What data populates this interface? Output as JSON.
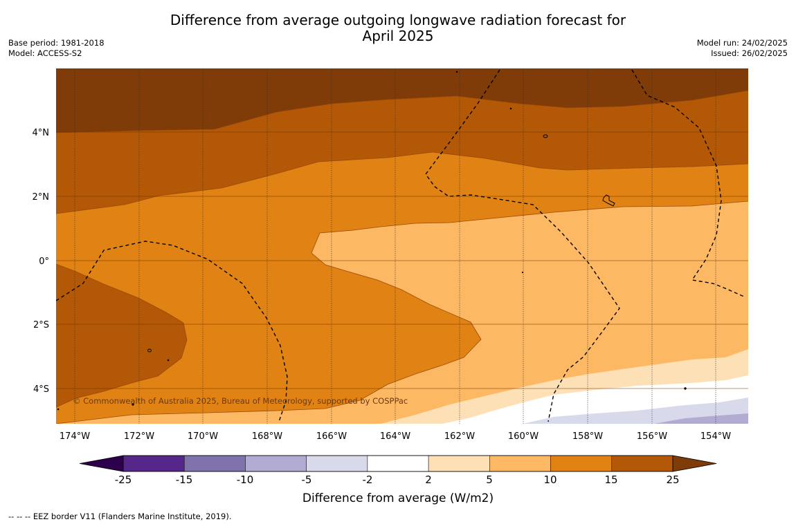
{
  "title_line1": "Difference from average outgoing longwave radiation forecast for",
  "title_line2": "April 2025",
  "base_period": "Base period: 1981-2018",
  "model": "Model: ACCESS-S2",
  "model_run": "Model run: 24/02/2025",
  "issued": "Issued: 26/02/2025",
  "copyright": "© Commonwealth of Australia 2025, Bureau of Meteorology, supported by COSPPac",
  "map": {
    "lon_labels": [
      "174°W",
      "172°W",
      "170°W",
      "168°W",
      "166°W",
      "164°W",
      "162°W",
      "160°W",
      "158°W",
      "156°W",
      "154°W"
    ],
    "lat_labels": [
      "4°N",
      "2°N",
      "0°",
      "2°S",
      "4°S"
    ]
  },
  "colorbar": {
    "title": "Difference from average (W/m2)",
    "ticks": [
      "-25",
      "-15",
      "-10",
      "-5",
      "-2",
      "2",
      "5",
      "10",
      "15",
      "25"
    ],
    "colors": [
      "#542788",
      "#8073ac",
      "#b2abd2",
      "#d8daeb",
      "#ffffff",
      "#fee0b6",
      "#fdb863",
      "#e08214",
      "#b35806"
    ],
    "under_color": "#2d004b",
    "over_color": "#7f3b08"
  },
  "footnote": "--  --  -- EEZ border V11 (Flanders Marine Institute, 2019)."
}
